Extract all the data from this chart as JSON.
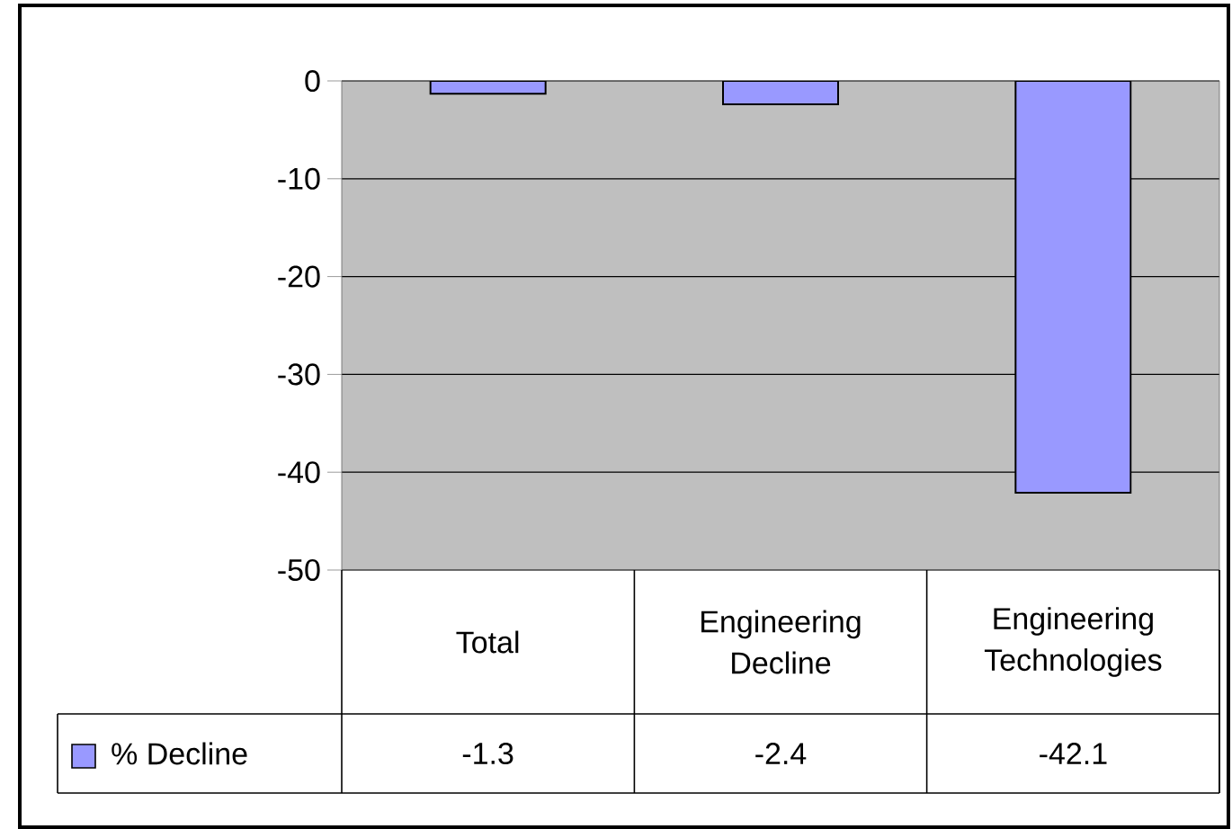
{
  "chart_data": {
    "type": "bar",
    "categories": [
      "Total",
      "Engineering Decline",
      "Engineering Technologies"
    ],
    "series": [
      {
        "name": "% Decline",
        "color": "#9999ff",
        "values": [
          -1.3,
          -2.4,
          -42.1
        ]
      }
    ],
    "ylim": [
      -50,
      0
    ],
    "yticks": [
      0,
      -10,
      -20,
      -30,
      -40,
      -50
    ],
    "grid": "y",
    "data_labels": true,
    "legend": "bottom left"
  }
}
